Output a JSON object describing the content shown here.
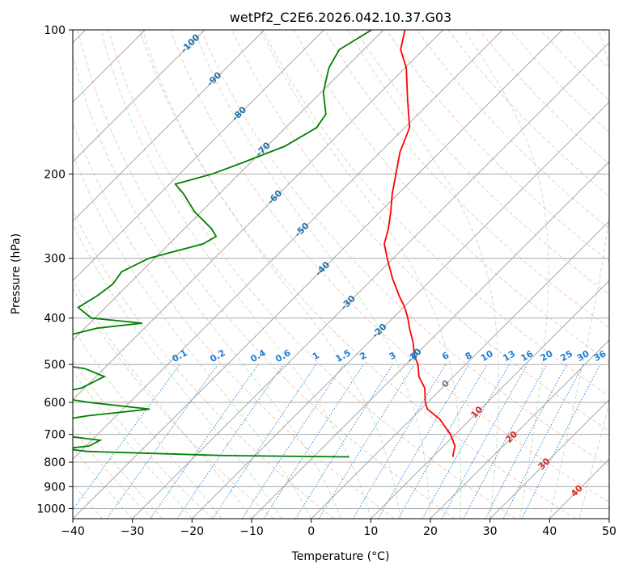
{
  "chart_data": {
    "type": "line",
    "chart_kind": "skew-T log-P diagram",
    "title": "wetPf2_C2E6.2026.042.10.37.G03",
    "xlabel": "Temperature (°C)",
    "ylabel": "Pressure (hPa)",
    "xlim": [
      -40,
      50
    ],
    "ylim": [
      1050,
      100
    ],
    "y_scale": "log",
    "grid": true,
    "x_ticks": [
      "−40",
      "−30",
      "−20",
      "−10",
      "0",
      "10",
      "20",
      "30",
      "40",
      "50"
    ],
    "y_ticks": [
      "100",
      "200",
      "300",
      "400",
      "500",
      "600",
      "700",
      "800",
      "900",
      "1000"
    ],
    "x_tick_values": [
      -40,
      -30,
      -20,
      -10,
      0,
      10,
      20,
      30,
      40,
      50
    ],
    "y_tick_values": [
      100,
      200,
      300,
      400,
      500,
      600,
      700,
      800,
      900,
      1000
    ],
    "isotherm_labels": [
      "-100",
      "-90",
      "-80",
      "-70",
      "-60",
      "-50",
      "-40",
      "-30",
      "-20",
      "-10",
      "0",
      "10",
      "20",
      "30",
      "40"
    ],
    "isotherm_label_values": [
      -100,
      -90,
      -80,
      -70,
      -60,
      -50,
      -40,
      -30,
      -20,
      -10,
      0,
      10,
      20,
      30,
      40
    ],
    "mixing_ratio_labels": [
      "0.1",
      "0.2",
      "0.4",
      "0.6",
      "1",
      "1.5",
      "2",
      "3",
      "4",
      "6",
      "8",
      "10",
      "13",
      "16",
      "20",
      "25",
      "30",
      "36"
    ],
    "mixing_ratio_values": [
      0.1,
      0.2,
      0.4,
      0.6,
      1,
      1.5,
      2,
      3,
      4,
      6,
      8,
      10,
      13,
      16,
      20,
      25,
      30,
      36
    ],
    "series": [
      {
        "kind": "temperature",
        "color": "#ff0000",
        "points": [
          [
            100,
            -66.4
          ],
          [
            110,
            -63.8
          ],
          [
            120,
            -59.8
          ],
          [
            140,
            -54.2
          ],
          [
            160,
            -49.2
          ],
          [
            180,
            -46.7
          ],
          [
            200,
            -43.7
          ],
          [
            220,
            -41.0
          ],
          [
            240,
            -38.2
          ],
          [
            260,
            -35.8
          ],
          [
            280,
            -33.9
          ],
          [
            300,
            -31.0
          ],
          [
            330,
            -26.8
          ],
          [
            360,
            -22.6
          ],
          [
            380,
            -19.8
          ],
          [
            400,
            -17.5
          ],
          [
            420,
            -15.5
          ],
          [
            450,
            -12.5
          ],
          [
            480,
            -10.0
          ],
          [
            500,
            -8.0
          ],
          [
            530,
            -5.8
          ],
          [
            560,
            -2.9
          ],
          [
            600,
            -0.4
          ],
          [
            620,
            1.1
          ],
          [
            650,
            4.8
          ],
          [
            700,
            9.2
          ],
          [
            740,
            11.9
          ],
          [
            770,
            13.0
          ],
          [
            780,
            13.4
          ]
        ]
      },
      {
        "kind": "dewpoint",
        "color": "#008000",
        "points": [
          [
            100,
            -72.0
          ],
          [
            110,
            -74.1
          ],
          [
            120,
            -72.8
          ],
          [
            135,
            -69.6
          ],
          [
            150,
            -65.5
          ],
          [
            160,
            -64.8
          ],
          [
            175,
            -67.0
          ],
          [
            190,
            -71.5
          ],
          [
            200,
            -74.5
          ],
          [
            210,
            -79.0
          ],
          [
            220,
            -76.0
          ],
          [
            240,
            -71.1
          ],
          [
            260,
            -65.5
          ],
          [
            270,
            -63.4
          ],
          [
            280,
            -64.3
          ],
          [
            290,
            -67.7
          ],
          [
            300,
            -71.0
          ],
          [
            320,
            -73.3
          ],
          [
            340,
            -72.7
          ],
          [
            360,
            -73.4
          ],
          [
            380,
            -74.6
          ],
          [
            400,
            -70.6
          ],
          [
            410,
            -61.2
          ],
          [
            420,
            -67.9
          ],
          [
            440,
            -72.9
          ],
          [
            470,
            -71.2
          ],
          [
            480,
            -74.1
          ],
          [
            490,
            -74.0
          ],
          [
            510,
            -63.2
          ],
          [
            530,
            -58.6
          ],
          [
            560,
            -60.5
          ],
          [
            580,
            -65.5
          ],
          [
            600,
            -56.9
          ],
          [
            620,
            -45.5
          ],
          [
            640,
            -54.8
          ],
          [
            660,
            -60.4
          ],
          [
            680,
            -57.9
          ],
          [
            690,
            -61.5
          ],
          [
            700,
            -57.6
          ],
          [
            720,
            -48.6
          ],
          [
            740,
            -49.5
          ],
          [
            750,
            -53.0
          ],
          [
            760,
            -48.8
          ],
          [
            775,
            -25.0
          ],
          [
            780,
            -4.0
          ]
        ]
      }
    ]
  }
}
